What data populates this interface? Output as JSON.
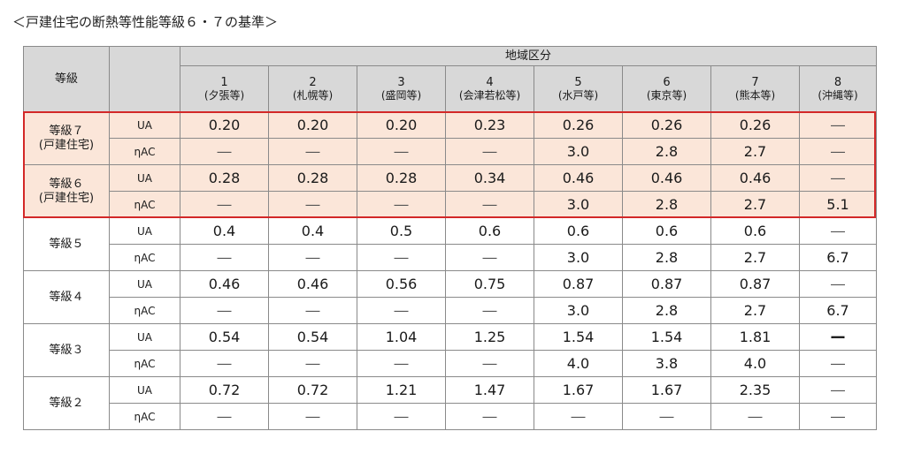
{
  "title": "＜戸建住宅の断熱等性能等級６・７の基準＞",
  "header": {
    "grade_label": "等級",
    "region_label": "地域区分",
    "regions": [
      {
        "num": "1",
        "name": "(夕張等)"
      },
      {
        "num": "2",
        "name": "(札幌等)"
      },
      {
        "num": "3",
        "name": "(盛岡等)"
      },
      {
        "num": "4",
        "name": "(会津若松等)"
      },
      {
        "num": "5",
        "name": "(水戸等)"
      },
      {
        "num": "6",
        "name": "(東京等)"
      },
      {
        "num": "7",
        "name": "(熊本等)"
      },
      {
        "num": "8",
        "name": "(沖縄等)"
      }
    ]
  },
  "highlight_color": "#d32828",
  "rows": [
    {
      "grade": "等級７",
      "grade_sub": "(戸建住宅)",
      "highlight": true,
      "UA": [
        "0.20",
        "0.20",
        "0.20",
        "0.23",
        "0.26",
        "0.26",
        "0.26",
        "―"
      ],
      "nAC": [
        "―",
        "―",
        "―",
        "―",
        "3.0",
        "2.8",
        "2.7",
        "―"
      ]
    },
    {
      "grade": "等級６",
      "grade_sub": "(戸建住宅)",
      "highlight": true,
      "UA": [
        "0.28",
        "0.28",
        "0.28",
        "0.34",
        "0.46",
        "0.46",
        "0.46",
        "―"
      ],
      "nAC": [
        "―",
        "―",
        "―",
        "―",
        "3.0",
        "2.8",
        "2.7",
        "5.1"
      ]
    },
    {
      "grade": "等級５",
      "grade_sub": "",
      "highlight": false,
      "UA": [
        "0.4",
        "0.4",
        "0.5",
        "0.6",
        "0.6",
        "0.6",
        "0.6",
        "―"
      ],
      "nAC": [
        "―",
        "―",
        "―",
        "―",
        "3.0",
        "2.8",
        "2.7",
        "6.7"
      ]
    },
    {
      "grade": "等級４",
      "grade_sub": "",
      "highlight": false,
      "UA": [
        "0.46",
        "0.46",
        "0.56",
        "0.75",
        "0.87",
        "0.87",
        "0.87",
        "―"
      ],
      "nAC": [
        "―",
        "―",
        "―",
        "―",
        "3.0",
        "2.8",
        "2.7",
        "6.7"
      ]
    },
    {
      "grade": "等級３",
      "grade_sub": "",
      "highlight": false,
      "UA": [
        "0.54",
        "0.54",
        "1.04",
        "1.25",
        "1.54",
        "1.54",
        "1.81",
        "ー"
      ],
      "nAC": [
        "―",
        "―",
        "―",
        "―",
        "4.0",
        "3.8",
        "4.0",
        "―"
      ]
    },
    {
      "grade": "等級２",
      "grade_sub": "",
      "highlight": false,
      "UA": [
        "0.72",
        "0.72",
        "1.21",
        "1.47",
        "1.67",
        "1.67",
        "2.35",
        "―"
      ],
      "nAC": [
        "―",
        "―",
        "―",
        "―",
        "―",
        "―",
        "―",
        "―"
      ]
    }
  ],
  "metric_labels": {
    "UA": "UA",
    "nAC": "ηAC"
  }
}
